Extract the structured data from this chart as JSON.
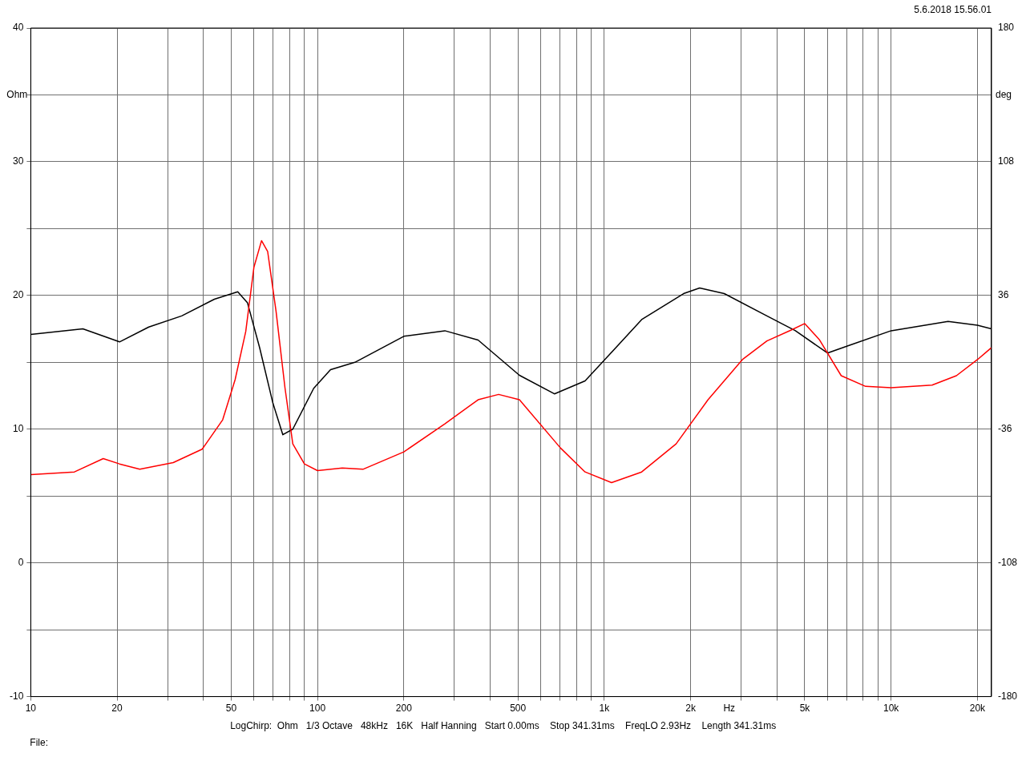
{
  "chart_data": {
    "type": "line",
    "xlabel": "Hz",
    "ylabel": "Ohm",
    "y2label": "deg",
    "log": "x",
    "grid": true,
    "legend": false,
    "marker": "none",
    "line_style": "solid",
    "xlim": [
      10,
      22400
    ],
    "xticks": [
      10,
      20,
      {
        "value": 30,
        "label": null
      },
      {
        "value": 40,
        "label": null
      },
      50,
      {
        "value": 60,
        "label": null
      },
      {
        "value": 70,
        "label": null
      },
      {
        "value": 80,
        "label": null
      },
      {
        "value": 90,
        "label": null
      },
      100,
      200,
      {
        "value": 300,
        "label": null
      },
      {
        "value": 400,
        "label": null
      },
      500,
      {
        "value": 600,
        "label": null
      },
      {
        "value": 700,
        "label": null
      },
      {
        "value": 800,
        "label": null
      },
      {
        "value": 900,
        "label": null
      },
      {
        "value": 1000,
        "label": "1k"
      },
      {
        "value": 2000,
        "label": "2k"
      },
      {
        "value": 3000,
        "label": null
      },
      {
        "value": 4000,
        "label": null
      },
      {
        "value": 5000,
        "label": "5k"
      },
      {
        "value": 6000,
        "label": null
      },
      {
        "value": 7000,
        "label": null
      },
      {
        "value": 8000,
        "label": null
      },
      {
        "value": 9000,
        "label": null
      },
      {
        "value": 10000,
        "label": "10k"
      },
      {
        "value": 20000,
        "label": "20k"
      }
    ],
    "ylim": [
      -10,
      40
    ],
    "yticks": [
      -10,
      {
        "value": -5,
        "label": null
      },
      0,
      {
        "value": 5,
        "label": null
      },
      10,
      {
        "value": 15,
        "label": null
      },
      20,
      {
        "value": 25,
        "label": null
      },
      30,
      {
        "value": 35,
        "label": null
      },
      40
    ],
    "y2lim": [
      -180,
      180
    ],
    "y2ticks": [
      -180,
      -108,
      -36,
      36,
      108,
      180
    ],
    "series": [
      {
        "color": "#ff0000",
        "x": [
          10,
          14.2,
          17.9,
          20.4,
          24,
          31.4,
          39.6,
          46.7,
          51.6,
          56.2,
          60,
          63.8,
          67,
          71.7,
          77,
          82,
          90,
          100,
          122,
          144,
          200,
          278,
          363,
          428,
          506,
          703,
          857,
          1060,
          1350,
          1780,
          2300,
          3030,
          3690,
          4470,
          5000,
          5620,
          6700,
          8150,
          10000,
          13900,
          16900,
          20000,
          22400
        ],
        "values": [
          6.6,
          6.8,
          7.8,
          7.4,
          7.0,
          7.5,
          8.5,
          10.7,
          13.7,
          17.3,
          22.1,
          24.1,
          23.3,
          18.8,
          13.1,
          8.9,
          7.4,
          6.9,
          7.1,
          7.0,
          8.3,
          10.4,
          12.2,
          12.6,
          12.2,
          8.6,
          6.8,
          6.0,
          6.8,
          8.9,
          12.2,
          15.2,
          16.6,
          17.4,
          17.9,
          16.7,
          14.0,
          13.2,
          13.1,
          13.3,
          14.0,
          15.2,
          16.1
        ]
      },
      {
        "color": "#000000",
        "axis": "y2",
        "x": [
          10,
          15.2,
          20.4,
          25.8,
          33.6,
          43.7,
          52.7,
          57,
          62.8,
          69.9,
          75.7,
          82,
          97,
          111,
          135,
          200,
          278,
          363,
          506,
          670,
          857,
          1040,
          1350,
          1890,
          2150,
          2620,
          3690,
          4640,
          6000,
          7100,
          10000,
          15800,
          20000,
          22400
        ],
        "values": [
          15,
          18,
          11,
          19,
          25,
          34,
          38,
          32,
          8,
          -22,
          -39,
          -36,
          -14,
          -4,
          0,
          14,
          17,
          12,
          -7,
          -17,
          -10,
          4,
          23,
          37,
          40,
          37,
          25,
          17,
          5,
          9,
          17,
          22,
          20,
          18
        ]
      }
    ],
    "annotations": [
      "5.6.2018 15.56.01",
      "LogChirp:  Ohm   1/3 Octave   48kHz   16K   Half Hanning   Start 0.00ms    Stop 341.31ms    FreqLO 2.93Hz    Length 341.31ms",
      "File:"
    ]
  }
}
